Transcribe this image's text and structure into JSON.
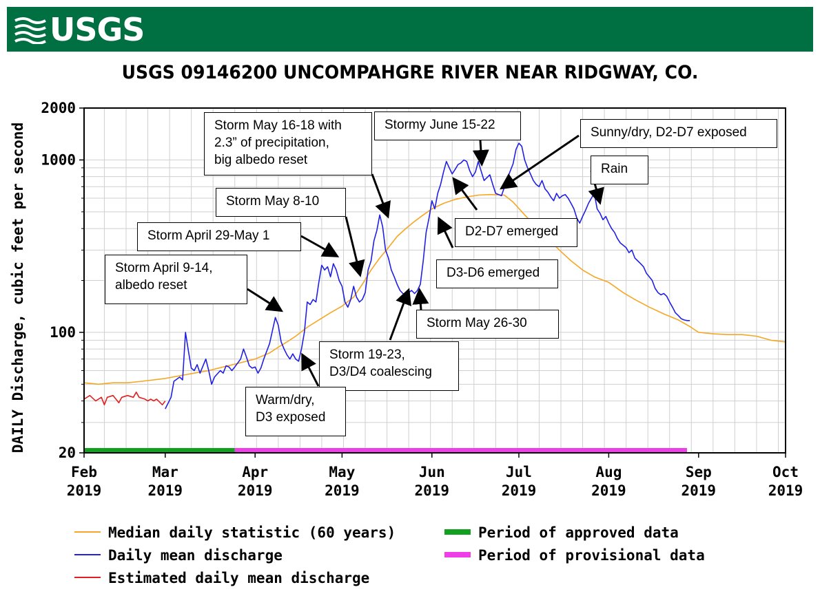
{
  "banner": {
    "logo": "USGS"
  },
  "chart_data": {
    "type": "line",
    "title": "USGS 09146200 UNCOMPAHGRE RIVER NEAR RIDGWAY, CO.",
    "ylabel": "DAILY Discharge, cubic feet per second",
    "xlabel": "",
    "yscale": "log",
    "ylim": [
      20,
      2000
    ],
    "y_tick_labels": [
      "20",
      "100",
      "1000",
      "2000"
    ],
    "x_range_days": [
      0,
      242
    ],
    "x_ticks": [
      {
        "label": "Feb\n2019",
        "day": 0
      },
      {
        "label": "Mar\n2019",
        "day": 28
      },
      {
        "label": "Apr\n2019",
        "day": 59
      },
      {
        "label": "May\n2019",
        "day": 89
      },
      {
        "label": "Jun\n2019",
        "day": 120
      },
      {
        "label": "Jul\n2019",
        "day": 150
      },
      {
        "label": "Aug\n2019",
        "day": 181
      },
      {
        "label": "Sep\n2019",
        "day": 212
      },
      {
        "label": "Oct\n2019",
        "day": 242
      }
    ],
    "grid": true,
    "series": [
      {
        "name": "Median daily statistic (60 years)",
        "color": "#f5a623",
        "points": [
          [
            0,
            51
          ],
          [
            5,
            50
          ],
          [
            10,
            51
          ],
          [
            15,
            51
          ],
          [
            20,
            52
          ],
          [
            28,
            54
          ],
          [
            33,
            56
          ],
          [
            38,
            58
          ],
          [
            43,
            60
          ],
          [
            48,
            63
          ],
          [
            53,
            66
          ],
          [
            59,
            70
          ],
          [
            64,
            76
          ],
          [
            67,
            82
          ],
          [
            70,
            88
          ],
          [
            73,
            95
          ],
          [
            77,
            107
          ],
          [
            81,
            118
          ],
          [
            85,
            130
          ],
          [
            89,
            142
          ],
          [
            93,
            160
          ],
          [
            96,
            190
          ],
          [
            99,
            230
          ],
          [
            102,
            270
          ],
          [
            105,
            310
          ],
          [
            108,
            360
          ],
          [
            111,
            400
          ],
          [
            114,
            440
          ],
          [
            117,
            480
          ],
          [
            120,
            520
          ],
          [
            124,
            560
          ],
          [
            128,
            590
          ],
          [
            132,
            610
          ],
          [
            136,
            625
          ],
          [
            140,
            630
          ],
          [
            145,
            625
          ],
          [
            148,
            570
          ],
          [
            152,
            480
          ],
          [
            156,
            410
          ],
          [
            160,
            350
          ],
          [
            164,
            300
          ],
          [
            168,
            260
          ],
          [
            172,
            230
          ],
          [
            176,
            210
          ],
          [
            181,
            195
          ],
          [
            186,
            170
          ],
          [
            190,
            155
          ],
          [
            195,
            140
          ],
          [
            200,
            128
          ],
          [
            205,
            118
          ],
          [
            209,
            108
          ],
          [
            212,
            100
          ],
          [
            217,
            98
          ],
          [
            222,
            97
          ],
          [
            227,
            97
          ],
          [
            232,
            95
          ],
          [
            237,
            90
          ],
          [
            242,
            88
          ]
        ]
      },
      {
        "name": "Daily mean discharge",
        "color": "#1f1fe6",
        "points": [
          [
            28,
            36
          ],
          [
            30,
            42
          ],
          [
            31,
            52
          ],
          [
            33,
            55
          ],
          [
            34,
            53
          ],
          [
            35,
            100
          ],
          [
            36,
            78
          ],
          [
            37,
            62
          ],
          [
            38,
            60
          ],
          [
            39,
            65
          ],
          [
            40,
            58
          ],
          [
            42,
            70
          ],
          [
            43,
            60
          ],
          [
            44,
            50
          ],
          [
            45,
            55
          ],
          [
            47,
            60
          ],
          [
            48,
            58
          ],
          [
            49,
            64
          ],
          [
            50,
            63
          ],
          [
            51,
            60
          ],
          [
            52,
            63
          ],
          [
            54,
            70
          ],
          [
            55,
            80
          ],
          [
            56,
            72
          ],
          [
            57,
            64
          ],
          [
            58,
            62
          ],
          [
            59,
            63
          ],
          [
            60,
            58
          ],
          [
            61,
            62
          ],
          [
            62,
            70
          ],
          [
            64,
            86
          ],
          [
            66,
            122
          ],
          [
            67,
            110
          ],
          [
            68,
            88
          ],
          [
            69,
            80
          ],
          [
            70,
            74
          ],
          [
            71,
            70
          ],
          [
            72,
            75
          ],
          [
            73,
            70
          ],
          [
            74,
            68
          ],
          [
            75,
            80
          ],
          [
            76,
            100
          ],
          [
            77,
            150
          ],
          [
            78,
            145
          ],
          [
            79,
            155
          ],
          [
            80,
            150
          ],
          [
            81,
            195
          ],
          [
            82,
            245
          ],
          [
            83,
            230
          ],
          [
            84,
            240
          ],
          [
            85,
            210
          ],
          [
            86,
            250
          ],
          [
            87,
            230
          ],
          [
            88,
            200
          ],
          [
            89,
            185
          ],
          [
            90,
            150
          ],
          [
            91,
            140
          ],
          [
            92,
            155
          ],
          [
            93,
            185
          ],
          [
            94,
            160
          ],
          [
            95,
            150
          ],
          [
            96,
            155
          ],
          [
            97,
            170
          ],
          [
            98,
            230
          ],
          [
            99,
            260
          ],
          [
            100,
            340
          ],
          [
            101,
            390
          ],
          [
            102,
            480
          ],
          [
            103,
            410
          ],
          [
            104,
            300
          ],
          [
            105,
            270
          ],
          [
            106,
            230
          ],
          [
            107,
            210
          ],
          [
            108,
            190
          ],
          [
            109,
            175
          ],
          [
            110,
            168
          ],
          [
            111,
            165
          ],
          [
            112,
            170
          ],
          [
            113,
            175
          ],
          [
            114,
            168
          ],
          [
            115,
            175
          ],
          [
            116,
            190
          ],
          [
            117,
            260
          ],
          [
            118,
            380
          ],
          [
            119,
            460
          ],
          [
            120,
            580
          ],
          [
            121,
            520
          ],
          [
            122,
            640
          ],
          [
            123,
            720
          ],
          [
            124,
            850
          ],
          [
            125,
            980
          ],
          [
            126,
            900
          ],
          [
            127,
            830
          ],
          [
            128,
            880
          ],
          [
            129,
            940
          ],
          [
            130,
            960
          ],
          [
            131,
            1000
          ],
          [
            132,
            980
          ],
          [
            133,
            870
          ],
          [
            134,
            800
          ],
          [
            135,
            850
          ],
          [
            136,
            980
          ],
          [
            137,
            860
          ],
          [
            138,
            760
          ],
          [
            139,
            790
          ],
          [
            140,
            820
          ],
          [
            141,
            720
          ],
          [
            142,
            640
          ],
          [
            144,
            620
          ],
          [
            146,
            780
          ],
          [
            148,
            950
          ],
          [
            149,
            1150
          ],
          [
            150,
            1250
          ],
          [
            151,
            1200
          ],
          [
            152,
            1000
          ],
          [
            153,
            900
          ],
          [
            154,
            830
          ],
          [
            155,
            760
          ],
          [
            156,
            720
          ],
          [
            157,
            700
          ],
          [
            158,
            760
          ],
          [
            159,
            680
          ],
          [
            160,
            650
          ],
          [
            161,
            610
          ],
          [
            162,
            580
          ],
          [
            163,
            640
          ],
          [
            164,
            600
          ],
          [
            165,
            620
          ],
          [
            166,
            630
          ],
          [
            167,
            600
          ],
          [
            168,
            560
          ],
          [
            169,
            520
          ],
          [
            170,
            460
          ],
          [
            171,
            430
          ],
          [
            172,
            470
          ],
          [
            173,
            510
          ],
          [
            174,
            560
          ],
          [
            175,
            600
          ],
          [
            176,
            640
          ],
          [
            177,
            520
          ],
          [
            178,
            490
          ],
          [
            179,
            450
          ],
          [
            180,
            470
          ],
          [
            181,
            430
          ],
          [
            182,
            400
          ],
          [
            183,
            380
          ],
          [
            184,
            350
          ],
          [
            185,
            330
          ],
          [
            186,
            320
          ],
          [
            187,
            310
          ],
          [
            188,
            290
          ],
          [
            189,
            300
          ],
          [
            190,
            270
          ],
          [
            191,
            260
          ],
          [
            192,
            250
          ],
          [
            193,
            240
          ],
          [
            194,
            220
          ],
          [
            195,
            210
          ],
          [
            196,
            200
          ],
          [
            197,
            180
          ],
          [
            198,
            170
          ],
          [
            199,
            165
          ],
          [
            200,
            168
          ],
          [
            201,
            162
          ],
          [
            202,
            150
          ],
          [
            203,
            140
          ],
          [
            204,
            130
          ],
          [
            205,
            125
          ],
          [
            206,
            120
          ],
          [
            207,
            118
          ],
          [
            208,
            117
          ],
          [
            209,
            117
          ]
        ]
      },
      {
        "name": "Estimated daily mean discharge",
        "color": "#e02020",
        "points": [
          [
            0,
            41
          ],
          [
            2,
            43
          ],
          [
            4,
            40
          ],
          [
            6,
            42
          ],
          [
            7,
            38
          ],
          [
            8,
            42
          ],
          [
            10,
            43
          ],
          [
            12,
            39
          ],
          [
            13,
            42
          ],
          [
            15,
            43
          ],
          [
            17,
            42
          ],
          [
            18,
            45
          ],
          [
            19,
            42
          ],
          [
            21,
            41
          ],
          [
            22,
            40
          ],
          [
            23,
            41
          ],
          [
            24,
            40
          ],
          [
            25,
            41
          ],
          [
            27,
            38
          ],
          [
            28,
            40
          ]
        ]
      }
    ],
    "approval_bands": [
      {
        "name": "Period of approved data",
        "color": "#13a020",
        "from_day": 0,
        "to_day": 52
      },
      {
        "name": "Period of provisional data",
        "color": "#ee3ee7",
        "from_day": 52,
        "to_day": 208
      }
    ],
    "legend_placement": "bottom",
    "legend": [
      {
        "label": "Median daily statistic (60 years)",
        "color": "#f5a623",
        "kind": "line"
      },
      {
        "label": "Period of approved data",
        "color": "#13a020",
        "kind": "bar"
      },
      {
        "label": "Daily mean discharge",
        "color": "#1f1fe6",
        "kind": "line"
      },
      {
        "label": "Period of provisional data",
        "color": "#ee3ee7",
        "kind": "bar"
      },
      {
        "label": "Estimated daily mean discharge",
        "color": "#e02020",
        "kind": "line"
      }
    ],
    "annotations": [
      {
        "text": "Storm May 16-18 with\n2.3” of precipitation,\nbig albedo reset"
      },
      {
        "text": "Stormy June 15-22"
      },
      {
        "text": "Sunny/dry, D2-D7 exposed"
      },
      {
        "text": "Rain"
      },
      {
        "text": "Storm May 8-10"
      },
      {
        "text": "Storm April 29-May 1"
      },
      {
        "text": "D2-D7 emerged"
      },
      {
        "text": "Storm April 9-14,\nalbedo reset"
      },
      {
        "text": "D3-D6 emerged"
      },
      {
        "text": "Storm May 26-30"
      },
      {
        "text": "Storm 19-23,\nD3/D4 coalescing"
      },
      {
        "text": "Warm/dry,\nD3 exposed"
      }
    ]
  }
}
